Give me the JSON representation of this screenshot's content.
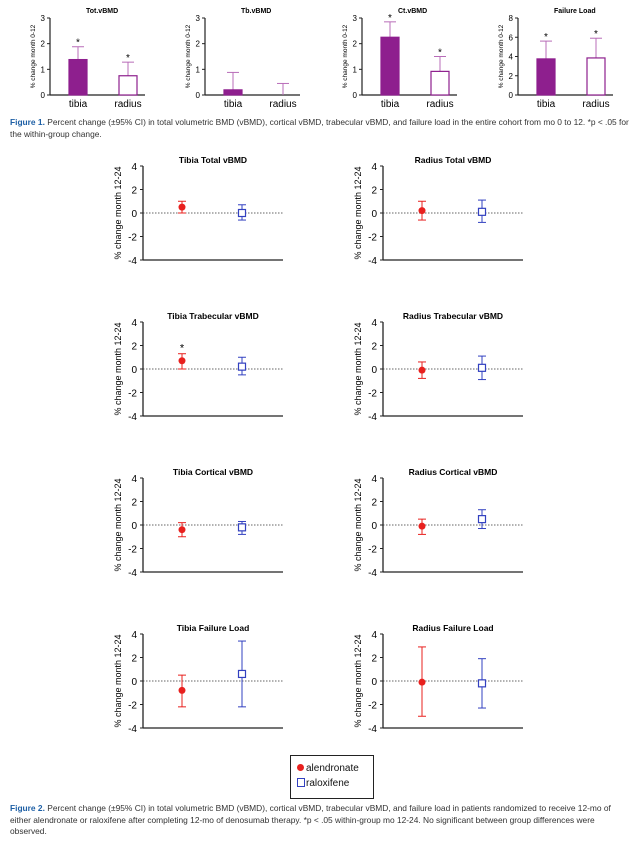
{
  "figure1": {
    "caption_label": "Figure 1.",
    "caption_text": " Percent change (±95% CI) in total volumetric BMD (vBMD), cortical vBMD, trabecular vBMD, and failure load in the entire cohort from mo 0 to 12. *p < .05 for the within-group change."
  },
  "figure2": {
    "caption_label": "Figure 2.",
    "caption_text": " Percent change (±95% CI) in total volumetric BMD (vBMD), cortical vBMD, trabecular vBMD, and failure load in patients randomized to receive 12-mo of either alendronate or raloxifene after completing 12-mo of denosumab therapy. *p < .05 within-group mo 12-24. No significant between group differences were observed."
  },
  "legend": {
    "alendronate": "alendronate",
    "raloxifene": "raloxifene"
  },
  "colors": {
    "bar": "#8e1f8e",
    "alendronate": "#e8201e",
    "raloxifene": "#3240c0"
  },
  "chart_data": [
    {
      "type": "bar",
      "title": "Tot.vBMD",
      "ylabel": "% change month 0-12",
      "categories": [
        "tibia",
        "radius"
      ],
      "values": [
        1.38,
        0.75
      ],
      "ci_upper": [
        1.88,
        1.28
      ],
      "significant": [
        true,
        true
      ],
      "fill": [
        "filled",
        "open"
      ],
      "ylim": [
        0,
        3
      ],
      "yticks": [
        0,
        1,
        2,
        3
      ]
    },
    {
      "type": "bar",
      "title": "Tb.vBMD",
      "ylabel": "% change month 0-12",
      "categories": [
        "tibia",
        "radius"
      ],
      "values": [
        0.2,
        0.0
      ],
      "ci_upper": [
        0.88,
        0.45
      ],
      "significant": [
        false,
        false
      ],
      "fill": [
        "filled",
        "open"
      ],
      "ylim": [
        0,
        3
      ],
      "yticks": [
        0,
        1,
        2,
        3
      ]
    },
    {
      "type": "bar",
      "title": "Ct.vBMD",
      "ylabel": "% change month 0-12",
      "categories": [
        "tibia",
        "radius"
      ],
      "values": [
        2.25,
        0.92
      ],
      "ci_upper": [
        2.85,
        1.5
      ],
      "significant": [
        true,
        true
      ],
      "fill": [
        "filled",
        "open"
      ],
      "ylim": [
        0,
        3
      ],
      "yticks": [
        0,
        1,
        2,
        3
      ]
    },
    {
      "type": "bar",
      "title": "Failure Load",
      "ylabel": "% change month 0-12",
      "categories": [
        "tibia",
        "radius"
      ],
      "values": [
        3.75,
        3.85
      ],
      "ci_upper": [
        5.6,
        5.9
      ],
      "significant": [
        true,
        true
      ],
      "fill": [
        "filled",
        "open"
      ],
      "ylim": [
        0,
        8
      ],
      "yticks": [
        0,
        2,
        4,
        6,
        8
      ]
    },
    {
      "type": "scatter",
      "title": "Tibia Total vBMD",
      "ylabel": "% change month 12-24",
      "ylim": [
        -4,
        4
      ],
      "yticks": [
        4,
        2,
        0,
        -2,
        -4
      ],
      "series": [
        {
          "name": "alendronate",
          "value": 0.5,
          "ci": [
            0.0,
            1.0
          ],
          "significant": false
        },
        {
          "name": "raloxifene",
          "value": 0.0,
          "ci": [
            -0.6,
            0.7
          ],
          "significant": false
        }
      ]
    },
    {
      "type": "scatter",
      "title": "Radius Total vBMD",
      "ylabel": "% change month 12-24",
      "ylim": [
        -4,
        4
      ],
      "yticks": [
        4,
        2,
        0,
        -2,
        -4
      ],
      "series": [
        {
          "name": "alendronate",
          "value": 0.2,
          "ci": [
            -0.6,
            1.0
          ],
          "significant": false
        },
        {
          "name": "raloxifene",
          "value": 0.1,
          "ci": [
            -0.8,
            1.1
          ],
          "significant": false
        }
      ]
    },
    {
      "type": "scatter",
      "title": "Tibia Trabecular vBMD",
      "ylabel": "% change month 12-24",
      "ylim": [
        -4,
        4
      ],
      "yticks": [
        4,
        2,
        0,
        -2,
        -4
      ],
      "series": [
        {
          "name": "alendronate",
          "value": 0.7,
          "ci": [
            0.0,
            1.3
          ],
          "significant": true
        },
        {
          "name": "raloxifene",
          "value": 0.2,
          "ci": [
            -0.5,
            1.0
          ],
          "significant": false
        }
      ]
    },
    {
      "type": "scatter",
      "title": "Radius Trabecular vBMD",
      "ylabel": "% change month 12-24",
      "ylim": [
        -4,
        4
      ],
      "yticks": [
        4,
        2,
        0,
        -2,
        -4
      ],
      "series": [
        {
          "name": "alendronate",
          "value": -0.1,
          "ci": [
            -0.8,
            0.6
          ],
          "significant": false
        },
        {
          "name": "raloxifene",
          "value": 0.1,
          "ci": [
            -0.9,
            1.1
          ],
          "significant": false
        }
      ]
    },
    {
      "type": "scatter",
      "title": "Tibia Cortical vBMD",
      "ylabel": "% change month 12-24",
      "ylim": [
        -4,
        4
      ],
      "yticks": [
        4,
        2,
        0,
        -2,
        -4
      ],
      "series": [
        {
          "name": "alendronate",
          "value": -0.4,
          "ci": [
            -1.0,
            0.2
          ],
          "significant": false
        },
        {
          "name": "raloxifene",
          "value": -0.2,
          "ci": [
            -0.8,
            0.3
          ],
          "significant": false
        }
      ]
    },
    {
      "type": "scatter",
      "title": "Radius Cortical vBMD",
      "ylabel": "% change month 12-24",
      "ylim": [
        -4,
        4
      ],
      "yticks": [
        4,
        2,
        0,
        -2,
        -4
      ],
      "series": [
        {
          "name": "alendronate",
          "value": -0.1,
          "ci": [
            -0.8,
            0.5
          ],
          "significant": false
        },
        {
          "name": "raloxifene",
          "value": 0.5,
          "ci": [
            -0.3,
            1.3
          ],
          "significant": false
        }
      ]
    },
    {
      "type": "scatter",
      "title": "Tibia Failure Load",
      "ylabel": "% change month 12-24",
      "ylim": [
        -4,
        4
      ],
      "yticks": [
        4,
        2,
        0,
        -2,
        -4
      ],
      "series": [
        {
          "name": "alendronate",
          "value": -0.8,
          "ci": [
            -2.2,
            0.5
          ],
          "significant": false
        },
        {
          "name": "raloxifene",
          "value": 0.6,
          "ci": [
            -2.2,
            3.4
          ],
          "significant": false
        }
      ]
    },
    {
      "type": "scatter",
      "title": "Radius Failure Load",
      "ylabel": "% change month 12-24",
      "ylim": [
        -4,
        4
      ],
      "yticks": [
        4,
        2,
        0,
        -2,
        -4
      ],
      "series": [
        {
          "name": "alendronate",
          "value": -0.1,
          "ci": [
            -3.0,
            2.9
          ],
          "significant": false
        },
        {
          "name": "raloxifene",
          "value": -0.2,
          "ci": [
            -2.3,
            1.9
          ],
          "significant": false
        }
      ]
    }
  ]
}
